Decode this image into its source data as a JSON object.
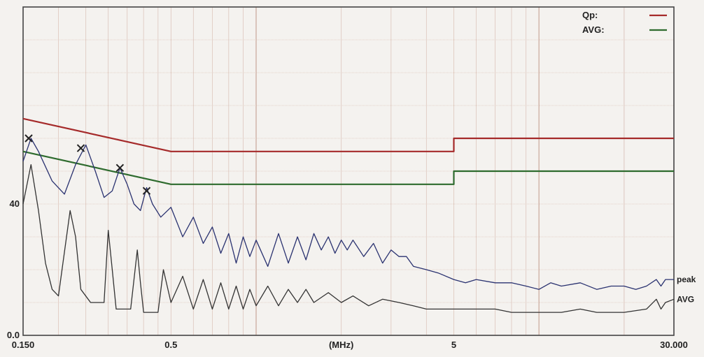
{
  "chart_data": {
    "type": "line",
    "title": "",
    "xlabel": "(MHz)",
    "ylabel": "",
    "x_scale": "log",
    "xlim": [
      0.15,
      30
    ],
    "ylim": [
      0,
      100
    ],
    "grid": true,
    "x_tick_labels": [
      {
        "x": 0.15,
        "label": "0.150"
      },
      {
        "x": 0.5,
        "label": "0.5"
      },
      {
        "x": 5,
        "label": "5"
      },
      {
        "x": 30,
        "label": "30.000"
      }
    ],
    "x_unit_label": {
      "x": 2.0,
      "label": "(MHz)"
    },
    "y_tick_labels": [
      {
        "y": 0,
        "label": "0.0"
      },
      {
        "y": 40,
        "label": "40"
      }
    ],
    "legend": {
      "placement": "top-right",
      "entries": [
        {
          "name": "Qp:",
          "color": "#a52a2a"
        },
        {
          "name": "AVG:",
          "color": "#2e6b2e"
        }
      ]
    },
    "series": [
      {
        "name": "Qp:",
        "color": "#a52a2a",
        "kind": "limit",
        "points": [
          [
            0.15,
            66
          ],
          [
            0.5,
            56
          ],
          [
            5,
            56
          ],
          [
            5,
            60
          ],
          [
            30,
            60
          ]
        ]
      },
      {
        "name": "AVG:",
        "color": "#2e6b2e",
        "kind": "limit",
        "points": [
          [
            0.15,
            56
          ],
          [
            0.5,
            46
          ],
          [
            5,
            46
          ],
          [
            5,
            50
          ],
          [
            30,
            50
          ]
        ]
      },
      {
        "name": "peak",
        "color": "#2a3270",
        "kind": "measurement",
        "points": [
          [
            0.15,
            53
          ],
          [
            0.16,
            60
          ],
          [
            0.17,
            56
          ],
          [
            0.19,
            47
          ],
          [
            0.21,
            43
          ],
          [
            0.23,
            52
          ],
          [
            0.25,
            58
          ],
          [
            0.27,
            50
          ],
          [
            0.29,
            42
          ],
          [
            0.31,
            44
          ],
          [
            0.33,
            51
          ],
          [
            0.35,
            46
          ],
          [
            0.37,
            40
          ],
          [
            0.39,
            38
          ],
          [
            0.41,
            45
          ],
          [
            0.43,
            40
          ],
          [
            0.46,
            36
          ],
          [
            0.5,
            39
          ],
          [
            0.55,
            30
          ],
          [
            0.6,
            36
          ],
          [
            0.65,
            28
          ],
          [
            0.7,
            33
          ],
          [
            0.75,
            25
          ],
          [
            0.8,
            31
          ],
          [
            0.85,
            22
          ],
          [
            0.9,
            30
          ],
          [
            0.95,
            24
          ],
          [
            1.0,
            29
          ],
          [
            1.1,
            21
          ],
          [
            1.2,
            31
          ],
          [
            1.3,
            22
          ],
          [
            1.4,
            30
          ],
          [
            1.5,
            23
          ],
          [
            1.6,
            31
          ],
          [
            1.7,
            26
          ],
          [
            1.8,
            30
          ],
          [
            1.9,
            25
          ],
          [
            2.0,
            29
          ],
          [
            2.1,
            26
          ],
          [
            2.2,
            29
          ],
          [
            2.4,
            24
          ],
          [
            2.6,
            28
          ],
          [
            2.8,
            22
          ],
          [
            3.0,
            26
          ],
          [
            3.2,
            24
          ],
          [
            3.4,
            24
          ],
          [
            3.6,
            21
          ],
          [
            4.0,
            20
          ],
          [
            4.4,
            19
          ],
          [
            5.0,
            17
          ],
          [
            5.5,
            16
          ],
          [
            6.0,
            17
          ],
          [
            7.0,
            16
          ],
          [
            8.0,
            16
          ],
          [
            9.0,
            15
          ],
          [
            10,
            14
          ],
          [
            11,
            16
          ],
          [
            12,
            15
          ],
          [
            14,
            16
          ],
          [
            16,
            14
          ],
          [
            18,
            15
          ],
          [
            20,
            15
          ],
          [
            22,
            14
          ],
          [
            24,
            15
          ],
          [
            26,
            17
          ],
          [
            27,
            15
          ],
          [
            28,
            17
          ],
          [
            30,
            17
          ]
        ]
      },
      {
        "name": "AVG",
        "color": "#333333",
        "kind": "measurement",
        "points": [
          [
            0.15,
            40
          ],
          [
            0.16,
            52
          ],
          [
            0.17,
            38
          ],
          [
            0.18,
            22
          ],
          [
            0.19,
            14
          ],
          [
            0.2,
            12
          ],
          [
            0.22,
            38
          ],
          [
            0.23,
            30
          ],
          [
            0.24,
            14
          ],
          [
            0.26,
            10
          ],
          [
            0.29,
            10
          ],
          [
            0.3,
            32
          ],
          [
            0.31,
            20
          ],
          [
            0.32,
            8
          ],
          [
            0.36,
            8
          ],
          [
            0.38,
            26
          ],
          [
            0.39,
            16
          ],
          [
            0.4,
            7
          ],
          [
            0.45,
            7
          ],
          [
            0.47,
            20
          ],
          [
            0.5,
            10
          ],
          [
            0.55,
            18
          ],
          [
            0.6,
            8
          ],
          [
            0.65,
            17
          ],
          [
            0.7,
            8
          ],
          [
            0.75,
            16
          ],
          [
            0.8,
            8
          ],
          [
            0.85,
            15
          ],
          [
            0.9,
            8
          ],
          [
            0.95,
            14
          ],
          [
            1.0,
            9
          ],
          [
            1.1,
            15
          ],
          [
            1.2,
            9
          ],
          [
            1.3,
            14
          ],
          [
            1.4,
            10
          ],
          [
            1.5,
            14
          ],
          [
            1.6,
            10
          ],
          [
            1.8,
            13
          ],
          [
            2.0,
            10
          ],
          [
            2.2,
            12
          ],
          [
            2.5,
            9
          ],
          [
            2.8,
            11
          ],
          [
            3.2,
            10
          ],
          [
            3.6,
            9
          ],
          [
            4.0,
            8
          ],
          [
            5.0,
            8
          ],
          [
            6.0,
            8
          ],
          [
            7.0,
            8
          ],
          [
            8.0,
            7
          ],
          [
            10,
            7
          ],
          [
            12,
            7
          ],
          [
            14,
            8
          ],
          [
            16,
            7
          ],
          [
            18,
            7
          ],
          [
            20,
            7
          ],
          [
            24,
            8
          ],
          [
            26,
            11
          ],
          [
            27,
            8
          ],
          [
            28,
            10
          ],
          [
            30,
            11
          ]
        ]
      }
    ],
    "peak_markers": [
      {
        "x": 0.157,
        "y": 60
      },
      {
        "x": 0.24,
        "y": 57
      },
      {
        "x": 0.33,
        "y": 51
      },
      {
        "x": 0.41,
        "y": 44
      }
    ],
    "curve_labels": [
      {
        "series": "peak",
        "label": "peak"
      },
      {
        "series": "AVG",
        "label": "AVG"
      }
    ]
  }
}
